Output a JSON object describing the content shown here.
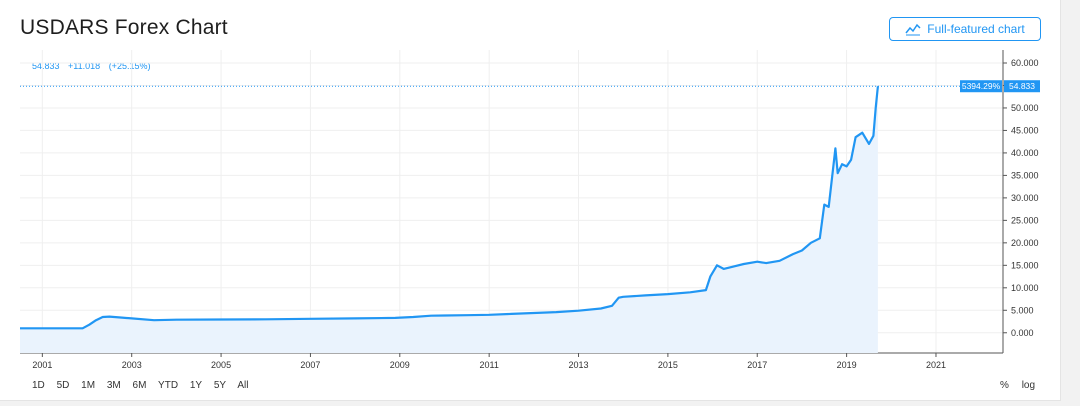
{
  "header": {
    "title": "USDARS Forex Chart",
    "full_chart_label": "Full-featured chart"
  },
  "legend": {
    "last": "54.833",
    "change": "+11.018",
    "change_pct": "(+25.15%)"
  },
  "price_tag": {
    "percent": "5394.29%",
    "value": "54.833"
  },
  "range_buttons": [
    "1D",
    "5D",
    "1M",
    "3M",
    "6M",
    "YTD",
    "1Y",
    "5Y",
    "All"
  ],
  "scale_options": [
    "%",
    "log"
  ],
  "colors": {
    "line": "#2196f3",
    "area": "#eaf3fd",
    "grid": "#efefef"
  },
  "chart_data": {
    "type": "area",
    "xlabel": "",
    "ylabel": "",
    "x_ticks": [
      "2001",
      "2003",
      "2005",
      "2007",
      "2009",
      "2011",
      "2013",
      "2015",
      "2017",
      "2019",
      "2021"
    ],
    "y_ticks": [
      "0.000",
      "5.000",
      "10.000",
      "15.000",
      "20.000",
      "25.000",
      "30.000",
      "35.000",
      "40.000",
      "45.000",
      "50.000",
      "55.000",
      "60.000"
    ],
    "xlim": [
      2000.5,
      2022.5
    ],
    "ylim": [
      -4.5,
      62
    ],
    "series": [
      {
        "x": [
          2000.5,
          2001.0,
          2001.5,
          2001.9,
          2002.05,
          2002.2,
          2002.35,
          2002.5,
          2002.75,
          2003.0,
          2003.5,
          2004.0,
          2005.0,
          2006.0,
          2007.0,
          2008.0,
          2008.9,
          2009.3,
          2009.7,
          2010.0,
          2010.5,
          2011.0,
          2011.5,
          2012.0,
          2012.5,
          2013.0,
          2013.5,
          2013.75,
          2013.9,
          2014.0,
          2014.5,
          2015.0,
          2015.5,
          2015.85,
          2015.95,
          2016.1,
          2016.25,
          2016.5,
          2016.7,
          2017.0,
          2017.2,
          2017.5,
          2017.8,
          2018.0,
          2018.2,
          2018.4,
          2018.5,
          2018.6,
          2018.75,
          2018.8,
          2018.9,
          2019.0,
          2019.1,
          2019.2,
          2019.35,
          2019.5,
          2019.6,
          2019.65,
          2019.7
        ],
        "y": [
          1.0,
          1.0,
          1.0,
          1.0,
          1.8,
          2.8,
          3.5,
          3.6,
          3.4,
          3.2,
          2.8,
          2.9,
          2.95,
          3.0,
          3.1,
          3.2,
          3.3,
          3.5,
          3.8,
          3.85,
          3.9,
          4.0,
          4.2,
          4.4,
          4.6,
          4.9,
          5.4,
          6.0,
          7.8,
          8.0,
          8.3,
          8.6,
          9.0,
          9.5,
          12.5,
          15.0,
          14.2,
          14.8,
          15.3,
          15.8,
          15.5,
          16.0,
          17.5,
          18.3,
          20.0,
          21.0,
          28.5,
          28.0,
          41.0,
          35.5,
          37.5,
          37.0,
          38.5,
          43.5,
          44.5,
          42.0,
          43.8,
          50.0,
          54.833
        ]
      }
    ]
  }
}
